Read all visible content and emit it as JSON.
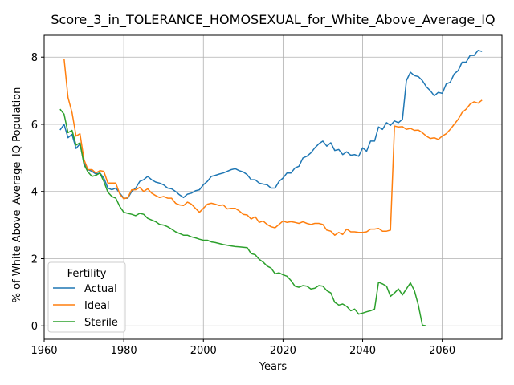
{
  "chart_data": {
    "type": "line",
    "title": "Score_3_in_TOLERANCE_HOMOSEXUAL_for_White_Above_Average_IQ",
    "xlabel": "Years",
    "ylabel": "% of White Above_Average_IQ Population",
    "xlim": [
      1960,
      2075
    ],
    "ylim": [
      -0.4,
      8.65
    ],
    "xticks": [
      1960,
      1980,
      2000,
      2020,
      2040,
      2060
    ],
    "yticks": [
      0,
      2,
      4,
      6,
      8
    ],
    "grid": true,
    "legend": {
      "title": "Fertility",
      "placement": "lower-left"
    },
    "series": [
      {
        "name": "Actual",
        "color": "#1f77b4",
        "points": [
          [
            1964,
            5.83
          ],
          [
            1965,
            6.0
          ],
          [
            1966,
            5.6
          ],
          [
            1967,
            5.7
          ],
          [
            1968,
            5.28
          ],
          [
            1969,
            5.42
          ],
          [
            1970,
            4.85
          ],
          [
            1971,
            4.65
          ],
          [
            1972,
            4.6
          ],
          [
            1973,
            4.52
          ],
          [
            1974,
            4.55
          ],
          [
            1975,
            4.4
          ],
          [
            1976,
            4.1
          ],
          [
            1977,
            4.05
          ],
          [
            1978,
            4.1
          ],
          [
            1979,
            3.95
          ],
          [
            1980,
            3.8
          ],
          [
            1981,
            3.8
          ],
          [
            1982,
            4.0
          ],
          [
            1983,
            4.1
          ],
          [
            1984,
            4.3
          ],
          [
            1985,
            4.35
          ],
          [
            1986,
            4.45
          ],
          [
            1987,
            4.35
          ],
          [
            1988,
            4.28
          ],
          [
            1989,
            4.25
          ],
          [
            1990,
            4.2
          ],
          [
            1991,
            4.1
          ],
          [
            1992,
            4.08
          ],
          [
            1993,
            4.0
          ],
          [
            1994,
            3.9
          ],
          [
            1995,
            3.82
          ],
          [
            1996,
            3.92
          ],
          [
            1997,
            3.95
          ],
          [
            1998,
            4.02
          ],
          [
            1999,
            4.05
          ],
          [
            2000,
            4.2
          ],
          [
            2001,
            4.3
          ],
          [
            2002,
            4.45
          ],
          [
            2003,
            4.48
          ],
          [
            2004,
            4.52
          ],
          [
            2005,
            4.55
          ],
          [
            2006,
            4.6
          ],
          [
            2007,
            4.65
          ],
          [
            2008,
            4.68
          ],
          [
            2009,
            4.62
          ],
          [
            2010,
            4.58
          ],
          [
            2011,
            4.5
          ],
          [
            2012,
            4.35
          ],
          [
            2013,
            4.35
          ],
          [
            2014,
            4.25
          ],
          [
            2015,
            4.22
          ],
          [
            2016,
            4.2
          ],
          [
            2017,
            4.1
          ],
          [
            2018,
            4.1
          ],
          [
            2019,
            4.3
          ],
          [
            2020,
            4.4
          ],
          [
            2021,
            4.55
          ],
          [
            2022,
            4.55
          ],
          [
            2023,
            4.7
          ],
          [
            2024,
            4.75
          ],
          [
            2025,
            5.0
          ],
          [
            2026,
            5.05
          ],
          [
            2027,
            5.15
          ],
          [
            2028,
            5.3
          ],
          [
            2029,
            5.42
          ],
          [
            2030,
            5.5
          ],
          [
            2031,
            5.35
          ],
          [
            2032,
            5.45
          ],
          [
            2033,
            5.22
          ],
          [
            2034,
            5.25
          ],
          [
            2035,
            5.1
          ],
          [
            2036,
            5.18
          ],
          [
            2037,
            5.08
          ],
          [
            2038,
            5.1
          ],
          [
            2039,
            5.05
          ],
          [
            2040,
            5.3
          ],
          [
            2041,
            5.2
          ],
          [
            2042,
            5.5
          ],
          [
            2043,
            5.5
          ],
          [
            2044,
            5.92
          ],
          [
            2045,
            5.85
          ],
          [
            2046,
            6.05
          ],
          [
            2047,
            5.97
          ],
          [
            2048,
            6.1
          ],
          [
            2049,
            6.05
          ],
          [
            2050,
            6.15
          ],
          [
            2051,
            7.3
          ],
          [
            2052,
            7.55
          ],
          [
            2053,
            7.45
          ],
          [
            2054,
            7.42
          ],
          [
            2055,
            7.3
          ],
          [
            2056,
            7.12
          ],
          [
            2057,
            7.0
          ],
          [
            2058,
            6.85
          ],
          [
            2059,
            6.95
          ],
          [
            2060,
            6.92
          ],
          [
            2061,
            7.2
          ],
          [
            2062,
            7.25
          ],
          [
            2063,
            7.5
          ],
          [
            2064,
            7.6
          ],
          [
            2065,
            7.85
          ],
          [
            2066,
            7.85
          ],
          [
            2067,
            8.05
          ],
          [
            2068,
            8.05
          ],
          [
            2069,
            8.2
          ],
          [
            2070,
            8.17
          ]
        ]
      },
      {
        "name": "Ideal",
        "color": "#ff7f0e",
        "points": [
          [
            1965,
            7.95
          ],
          [
            1966,
            6.8
          ],
          [
            1967,
            6.35
          ],
          [
            1968,
            5.65
          ],
          [
            1969,
            5.72
          ],
          [
            1970,
            4.95
          ],
          [
            1971,
            4.65
          ],
          [
            1972,
            4.65
          ],
          [
            1973,
            4.55
          ],
          [
            1974,
            4.62
          ],
          [
            1975,
            4.6
          ],
          [
            1976,
            4.25
          ],
          [
            1977,
            4.25
          ],
          [
            1978,
            4.25
          ],
          [
            1979,
            3.92
          ],
          [
            1980,
            3.78
          ],
          [
            1981,
            3.82
          ],
          [
            1982,
            4.05
          ],
          [
            1983,
            4.05
          ],
          [
            1984,
            4.12
          ],
          [
            1985,
            4.0
          ],
          [
            1986,
            4.08
          ],
          [
            1987,
            3.95
          ],
          [
            1988,
            3.88
          ],
          [
            1989,
            3.82
          ],
          [
            1990,
            3.85
          ],
          [
            1991,
            3.8
          ],
          [
            1992,
            3.8
          ],
          [
            1993,
            3.65
          ],
          [
            1994,
            3.6
          ],
          [
            1995,
            3.58
          ],
          [
            1996,
            3.68
          ],
          [
            1997,
            3.62
          ],
          [
            1998,
            3.5
          ],
          [
            1999,
            3.38
          ],
          [
            2000,
            3.5
          ],
          [
            2001,
            3.62
          ],
          [
            2002,
            3.65
          ],
          [
            2003,
            3.62
          ],
          [
            2004,
            3.58
          ],
          [
            2005,
            3.6
          ],
          [
            2006,
            3.48
          ],
          [
            2007,
            3.5
          ],
          [
            2008,
            3.5
          ],
          [
            2009,
            3.42
          ],
          [
            2010,
            3.32
          ],
          [
            2011,
            3.3
          ],
          [
            2012,
            3.18
          ],
          [
            2013,
            3.25
          ],
          [
            2014,
            3.08
          ],
          [
            2015,
            3.12
          ],
          [
            2016,
            3.02
          ],
          [
            2017,
            2.95
          ],
          [
            2018,
            2.92
          ],
          [
            2019,
            3.02
          ],
          [
            2020,
            3.12
          ],
          [
            2021,
            3.08
          ],
          [
            2022,
            3.1
          ],
          [
            2023,
            3.08
          ],
          [
            2024,
            3.05
          ],
          [
            2025,
            3.1
          ],
          [
            2026,
            3.05
          ],
          [
            2027,
            3.02
          ],
          [
            2028,
            3.05
          ],
          [
            2029,
            3.05
          ],
          [
            2030,
            3.02
          ],
          [
            2031,
            2.85
          ],
          [
            2032,
            2.82
          ],
          [
            2033,
            2.7
          ],
          [
            2034,
            2.78
          ],
          [
            2035,
            2.72
          ],
          [
            2036,
            2.88
          ],
          [
            2037,
            2.8
          ],
          [
            2038,
            2.8
          ],
          [
            2039,
            2.78
          ],
          [
            2040,
            2.78
          ],
          [
            2041,
            2.8
          ],
          [
            2042,
            2.88
          ],
          [
            2043,
            2.88
          ],
          [
            2044,
            2.9
          ],
          [
            2045,
            2.82
          ],
          [
            2046,
            2.82
          ],
          [
            2047,
            2.85
          ],
          [
            2048,
            5.95
          ],
          [
            2049,
            5.92
          ],
          [
            2050,
            5.93
          ],
          [
            2051,
            5.85
          ],
          [
            2052,
            5.88
          ],
          [
            2053,
            5.82
          ],
          [
            2054,
            5.83
          ],
          [
            2055,
            5.75
          ],
          [
            2056,
            5.65
          ],
          [
            2057,
            5.58
          ],
          [
            2058,
            5.6
          ],
          [
            2059,
            5.55
          ],
          [
            2060,
            5.65
          ],
          [
            2061,
            5.72
          ],
          [
            2062,
            5.85
          ],
          [
            2063,
            6.0
          ],
          [
            2064,
            6.15
          ],
          [
            2065,
            6.35
          ],
          [
            2066,
            6.45
          ],
          [
            2067,
            6.6
          ],
          [
            2068,
            6.67
          ],
          [
            2069,
            6.63
          ],
          [
            2070,
            6.72
          ]
        ]
      },
      {
        "name": "Sterile",
        "color": "#2ca02c",
        "points": [
          [
            1964,
            6.45
          ],
          [
            1965,
            6.3
          ],
          [
            1966,
            5.75
          ],
          [
            1967,
            5.82
          ],
          [
            1968,
            5.38
          ],
          [
            1969,
            5.45
          ],
          [
            1970,
            4.8
          ],
          [
            1971,
            4.58
          ],
          [
            1972,
            4.45
          ],
          [
            1973,
            4.48
          ],
          [
            1974,
            4.55
          ],
          [
            1975,
            4.3
          ],
          [
            1976,
            3.98
          ],
          [
            1977,
            3.85
          ],
          [
            1978,
            3.8
          ],
          [
            1979,
            3.55
          ],
          [
            1980,
            3.38
          ],
          [
            1981,
            3.35
          ],
          [
            1982,
            3.32
          ],
          [
            1983,
            3.28
          ],
          [
            1984,
            3.35
          ],
          [
            1985,
            3.32
          ],
          [
            1986,
            3.2
          ],
          [
            1987,
            3.15
          ],
          [
            1988,
            3.1
          ],
          [
            1989,
            3.02
          ],
          [
            1990,
            3.0
          ],
          [
            1991,
            2.95
          ],
          [
            1992,
            2.88
          ],
          [
            1993,
            2.8
          ],
          [
            1994,
            2.75
          ],
          [
            1995,
            2.7
          ],
          [
            1996,
            2.7
          ],
          [
            1997,
            2.65
          ],
          [
            1998,
            2.62
          ],
          [
            1999,
            2.58
          ],
          [
            2000,
            2.55
          ],
          [
            2001,
            2.55
          ],
          [
            2002,
            2.5
          ],
          [
            2003,
            2.48
          ],
          [
            2004,
            2.45
          ],
          [
            2005,
            2.42
          ],
          [
            2006,
            2.4
          ],
          [
            2007,
            2.38
          ],
          [
            2008,
            2.36
          ],
          [
            2009,
            2.35
          ],
          [
            2010,
            2.34
          ],
          [
            2011,
            2.33
          ],
          [
            2012,
            2.15
          ],
          [
            2013,
            2.12
          ],
          [
            2014,
            1.98
          ],
          [
            2015,
            1.9
          ],
          [
            2016,
            1.78
          ],
          [
            2017,
            1.72
          ],
          [
            2018,
            1.55
          ],
          [
            2019,
            1.58
          ],
          [
            2020,
            1.52
          ],
          [
            2021,
            1.48
          ],
          [
            2022,
            1.35
          ],
          [
            2023,
            1.18
          ],
          [
            2024,
            1.15
          ],
          [
            2025,
            1.2
          ],
          [
            2026,
            1.18
          ],
          [
            2027,
            1.1
          ],
          [
            2028,
            1.12
          ],
          [
            2029,
            1.2
          ],
          [
            2030,
            1.18
          ],
          [
            2031,
            1.05
          ],
          [
            2032,
            0.98
          ],
          [
            2033,
            0.7
          ],
          [
            2034,
            0.62
          ],
          [
            2035,
            0.65
          ],
          [
            2036,
            0.58
          ],
          [
            2037,
            0.45
          ],
          [
            2038,
            0.5
          ],
          [
            2039,
            0.35
          ],
          [
            2040,
            0.38
          ],
          [
            2041,
            0.42
          ],
          [
            2042,
            0.45
          ],
          [
            2043,
            0.5
          ],
          [
            2044,
            1.3
          ],
          [
            2045,
            1.25
          ],
          [
            2046,
            1.18
          ],
          [
            2047,
            0.88
          ],
          [
            2048,
            0.98
          ],
          [
            2049,
            1.1
          ],
          [
            2050,
            0.92
          ],
          [
            2051,
            1.1
          ],
          [
            2052,
            1.28
          ],
          [
            2053,
            1.05
          ],
          [
            2054,
            0.62
          ],
          [
            2055,
            0.02
          ],
          [
            2056,
            0.0
          ]
        ]
      }
    ]
  }
}
